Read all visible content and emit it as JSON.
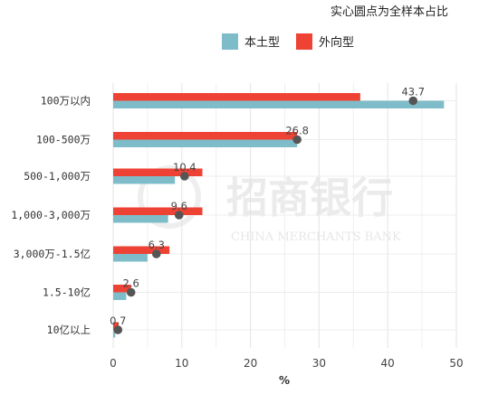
{
  "note": "实心圆点为全样本占比",
  "watermark": {
    "name_cn": "招商银行",
    "name_en": "CHINA MERCHANTS BANK"
  },
  "chart_data": {
    "type": "bar",
    "orientation": "horizontal",
    "categories": [
      "100万以内",
      "100-500万",
      "500-1,000万",
      "1,000-3,000万",
      "3,000万-1.5亿",
      "1.5-10亿",
      "10亿以上"
    ],
    "series": [
      {
        "name": "本土型",
        "color": "#7fbcc9",
        "values": [
          48.2,
          26.8,
          9.0,
          8.0,
          5.0,
          1.9,
          0.3
        ]
      },
      {
        "name": "外向型",
        "color": "#ee4334",
        "values": [
          36.0,
          26.8,
          13.0,
          13.0,
          8.2,
          2.6,
          0.8
        ]
      }
    ],
    "points": {
      "description": "实心圆点为全样本占比",
      "color": "#555555",
      "values": [
        43.7,
        26.8,
        10.4,
        9.6,
        6.3,
        2.6,
        0.7
      ],
      "labels": [
        "43.7",
        "26.8",
        "10.4",
        "9.6",
        "6.3",
        "2.6",
        "0.7"
      ]
    },
    "xlabel": "%",
    "ylabel": "",
    "xlim": [
      0,
      50
    ],
    "xticks": [
      "0",
      "10",
      "20",
      "30",
      "40",
      "50"
    ],
    "grid": true,
    "legend_position": "top"
  }
}
